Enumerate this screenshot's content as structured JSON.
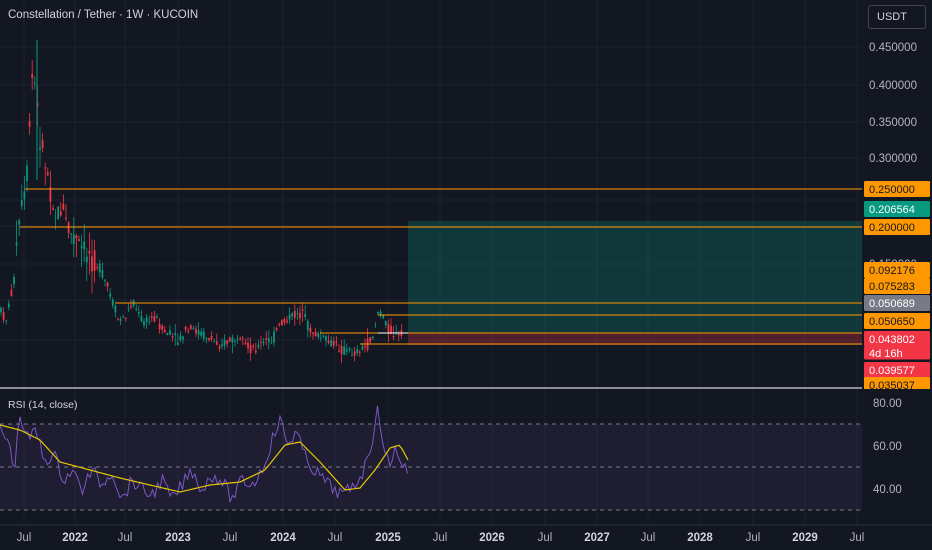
{
  "header": {
    "symbol_title": "Constellation / Tether · 1W · KUCOIN",
    "currency": "USDT"
  },
  "price_axis": {
    "ticks": [
      "0.450000",
      "0.400000",
      "0.350000",
      "0.300000",
      "0.150000"
    ]
  },
  "price_labels": [
    {
      "text": "0.250000",
      "color": "#ff9800",
      "text_color": "#131722"
    },
    {
      "text": "0.206564",
      "color": "#089981",
      "text_color": "#ffffff"
    },
    {
      "text": "0.200000",
      "color": "#ff9800",
      "text_color": "#131722"
    },
    {
      "text": "0.092176",
      "color": "#ff9800",
      "text_color": "#131722"
    },
    {
      "text": "0.075283",
      "color": "#ff9800",
      "text_color": "#131722"
    },
    {
      "text": "0.050689",
      "color": "#787b86",
      "text_color": "#ffffff"
    },
    {
      "text": "0.050650",
      "color": "#ff9800",
      "text_color": "#131722"
    },
    {
      "text": "0.043802",
      "color": "#f23645",
      "text_color": "#ffffff"
    },
    {
      "text": "4d 16h",
      "color": "#f23645",
      "text_color": "#ffffff"
    },
    {
      "text": "0.039577",
      "color": "#f23645",
      "text_color": "#ffffff"
    },
    {
      "text": "0.035037",
      "color": "#ff9800",
      "text_color": "#131722"
    }
  ],
  "time_axis": {
    "labels": [
      "Jul",
      "2022",
      "Jul",
      "2023",
      "Jul",
      "2024",
      "Jul",
      "2025",
      "Jul",
      "2026",
      "Jul",
      "2027",
      "Jul",
      "2028",
      "Jul",
      "2029",
      "Jul"
    ]
  },
  "rsi": {
    "title": "RSI (14, close)",
    "ticks": [
      "80.00",
      "60.00",
      "40.00"
    ]
  },
  "colors": {
    "background": "#131722",
    "up": "#089981",
    "down": "#f23645",
    "level": "#ff9800",
    "rsi_line": "#7e57c2",
    "rsi_ma": "#e6c800"
  }
}
